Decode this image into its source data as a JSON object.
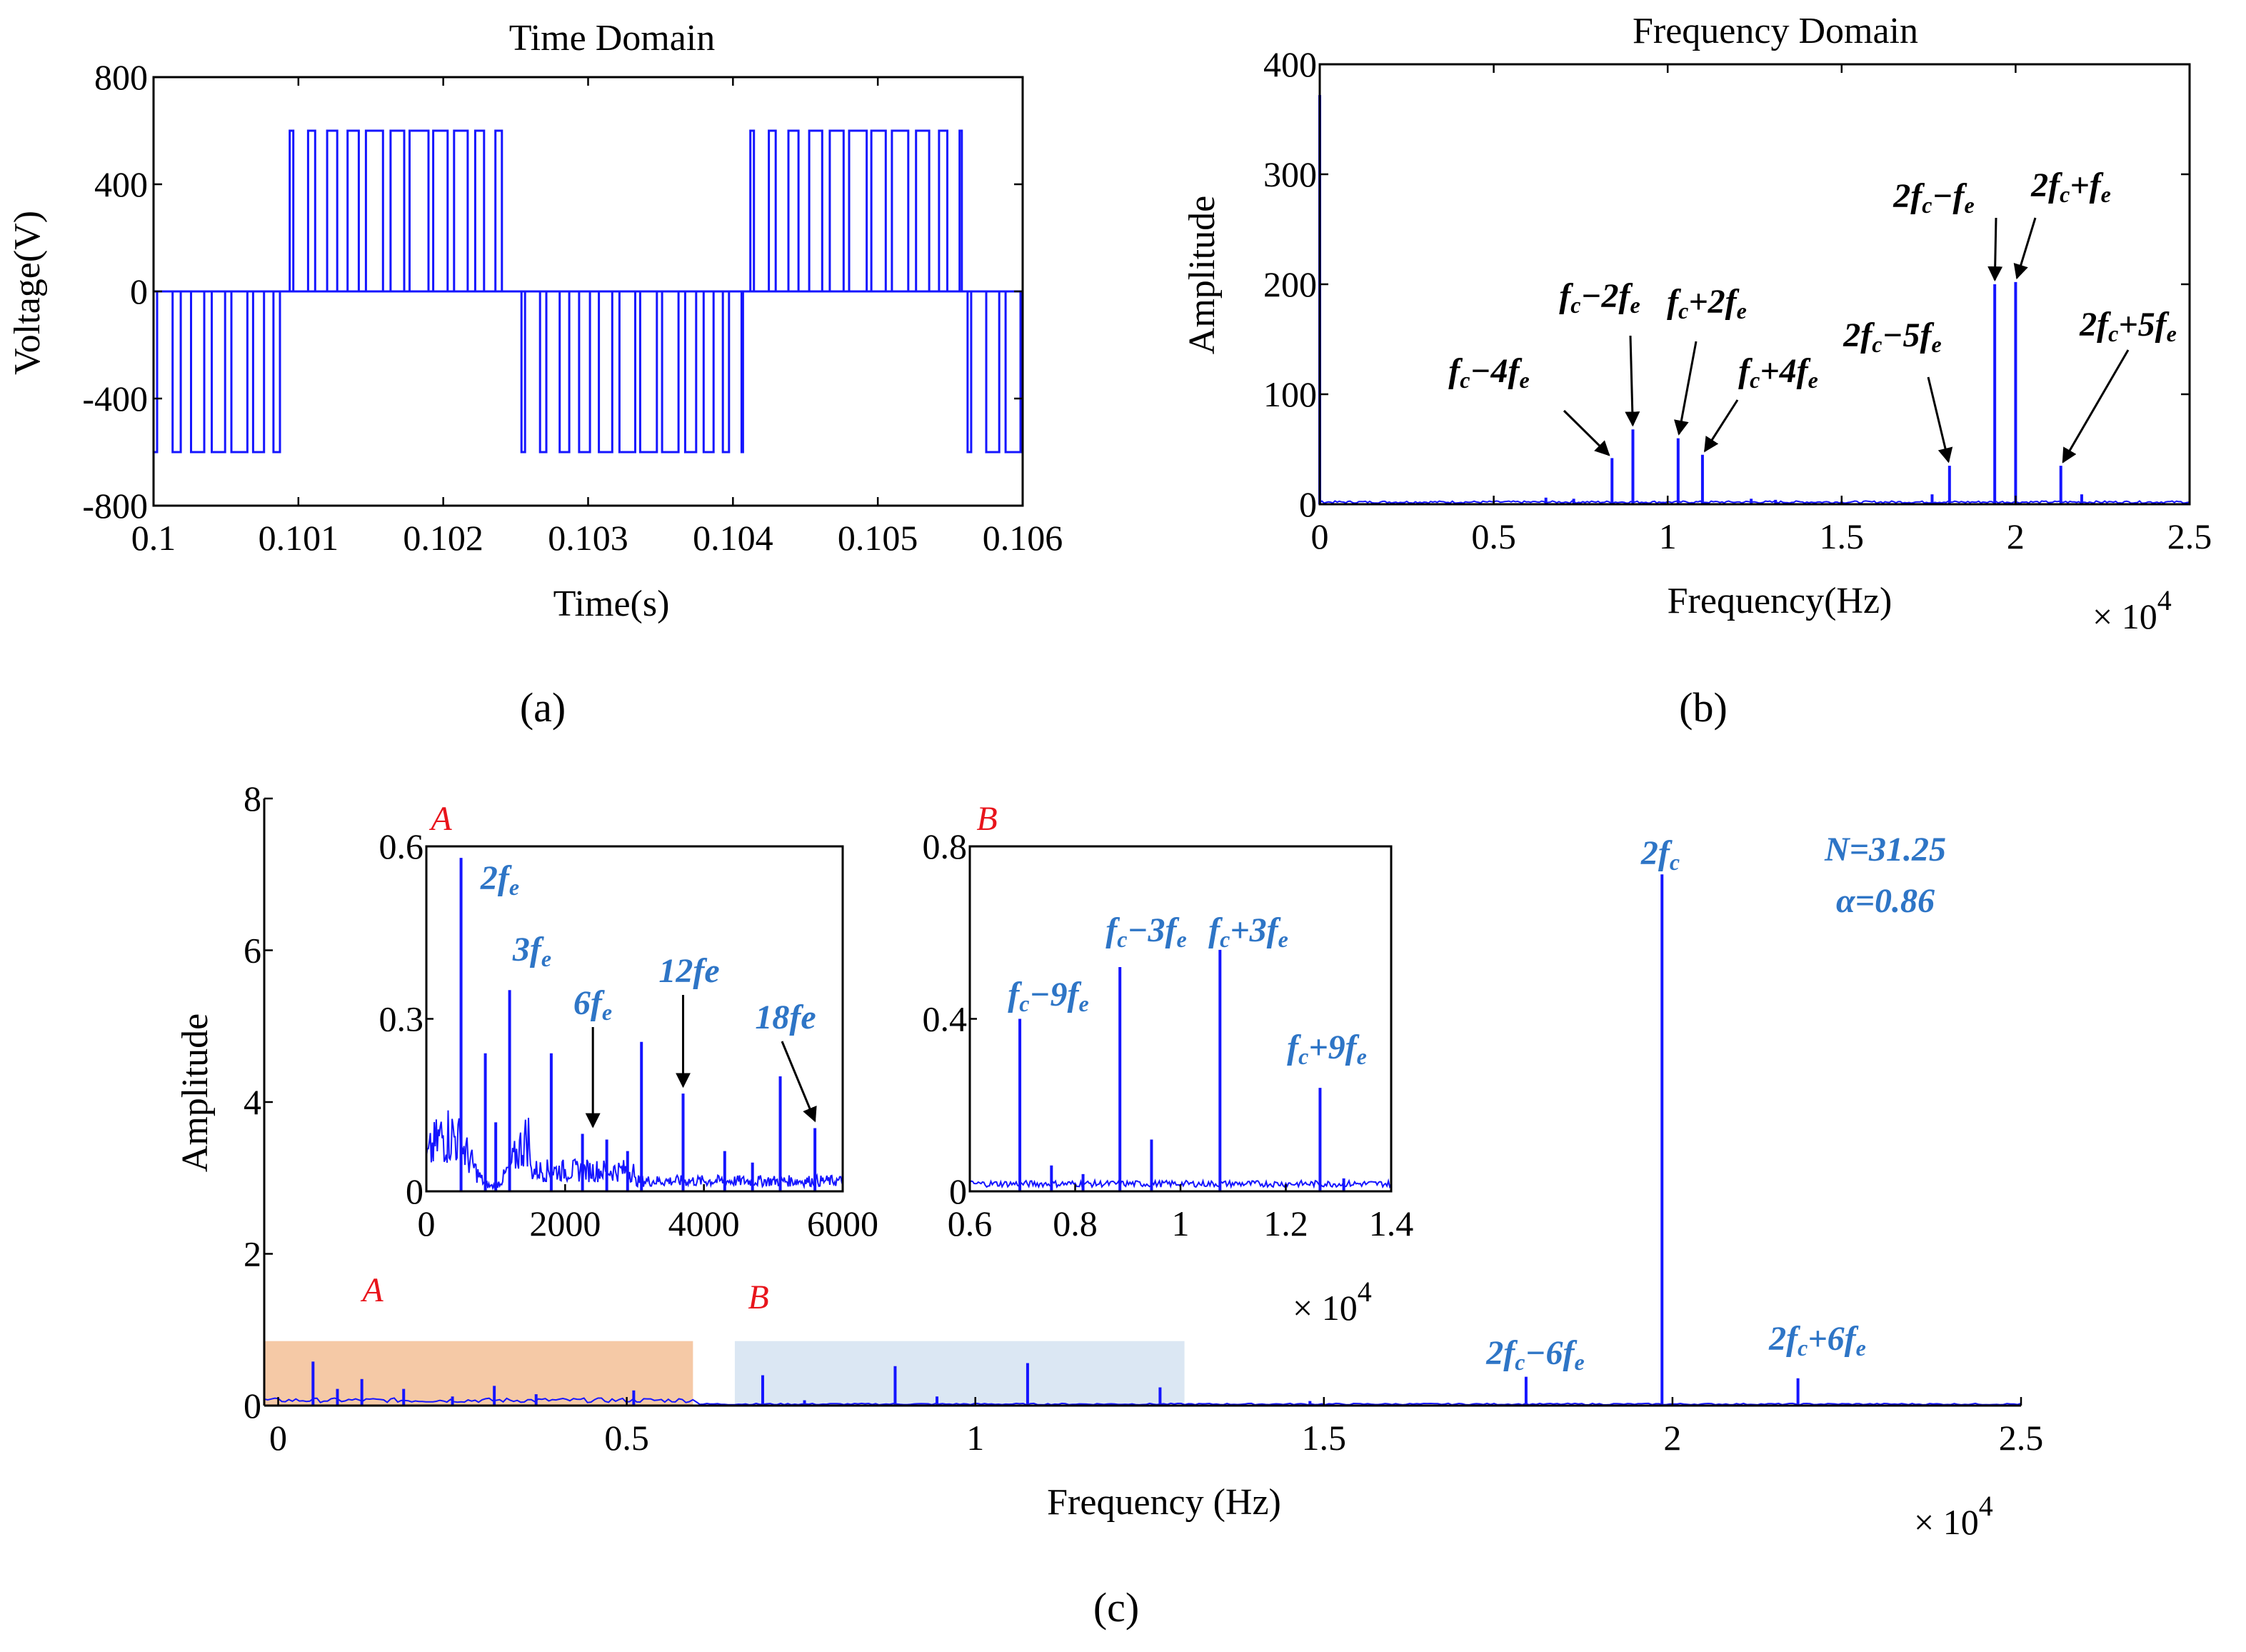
{
  "colors": {
    "signal": "#1515ff",
    "annotation_black": "#000000",
    "annotation_blue": "#2e75c6",
    "region_a_fill": "#f5c9a6",
    "region_b_fill": "#dbe7f3",
    "region_label": "#e8141b"
  },
  "captions": {
    "a": "(a)",
    "b": "(b)",
    "c": "(c)"
  },
  "chart_data": [
    {
      "id": "a",
      "type": "line",
      "title": "Time Domain",
      "xlabel": "Time(s)",
      "ylabel": "Voltage(V)",
      "xlim": [
        0.1,
        0.106
      ],
      "ylim": [
        -800,
        800
      ],
      "xticks": [
        0.1,
        0.101,
        0.102,
        0.103,
        0.104,
        0.105,
        0.106
      ],
      "xtick_labels": [
        "0.1",
        "0.101",
        "0.102",
        "0.103",
        "0.104",
        "0.105",
        "0.106"
      ],
      "yticks": [
        -800,
        -400,
        0,
        400,
        800
      ],
      "ytick_labels": [
        "-800",
        "-400",
        "0",
        "400",
        "800"
      ],
      "levels": {
        "high": 600,
        "low": -600
      },
      "segments": [
        {
          "start": 0.1,
          "end": 0.10089,
          "level": -600
        },
        {
          "start": 0.10094,
          "end": 0.10248,
          "level": 600
        },
        {
          "start": 0.10254,
          "end": 0.10406,
          "level": -600
        },
        {
          "start": 0.10412,
          "end": 0.10558,
          "level": 600
        },
        {
          "start": 0.10562,
          "end": 0.106,
          "level": -600
        }
      ]
    },
    {
      "id": "b",
      "type": "bar",
      "title": "Frequency Domain",
      "xlabel": "Frequency(Hz)",
      "ylabel": "Amplitude",
      "xlim": [
        0,
        25000
      ],
      "ylim": [
        0,
        400
      ],
      "xticks": [
        0,
        5000,
        10000,
        15000,
        20000,
        25000
      ],
      "xtick_labels": [
        "0",
        "0.5",
        "1",
        "1.5",
        "2",
        "2.5"
      ],
      "yticks": [
        0,
        100,
        200,
        300,
        400
      ],
      "ytick_labels": [
        "0",
        "100",
        "200",
        "300",
        "400"
      ],
      "x_multiplier": "× 10",
      "x_multiplier_exp": "4",
      "peaks": [
        {
          "x": 0,
          "y": 372
        },
        {
          "x": 8400,
          "y": 42
        },
        {
          "x": 9000,
          "y": 68
        },
        {
          "x": 10300,
          "y": 60
        },
        {
          "x": 11000,
          "y": 45
        },
        {
          "x": 18100,
          "y": 35
        },
        {
          "x": 19400,
          "y": 200
        },
        {
          "x": 20000,
          "y": 202
        },
        {
          "x": 21300,
          "y": 35
        },
        {
          "x": 6500,
          "y": 6
        },
        {
          "x": 7300,
          "y": 5
        },
        {
          "x": 12400,
          "y": 5
        },
        {
          "x": 13100,
          "y": 4
        },
        {
          "x": 17600,
          "y": 9
        },
        {
          "x": 21900,
          "y": 9
        }
      ],
      "annotations": [
        {
          "base": "f",
          "sub": "c",
          "rest": "−4",
          "f2": "f",
          "sub2": "e",
          "target_x": 8400,
          "target_y": 42
        },
        {
          "base": "f",
          "sub": "c",
          "rest": "−2",
          "f2": "f",
          "sub2": "e",
          "target_x": 9000,
          "target_y": 68
        },
        {
          "base": "f",
          "sub": "c",
          "rest": "+2",
          "f2": "f",
          "sub2": "e",
          "target_x": 10300,
          "target_y": 60
        },
        {
          "base": "f",
          "sub": "c",
          "rest": "+4",
          "f2": "f",
          "sub2": "e",
          "target_x": 11000,
          "target_y": 45
        },
        {
          "base": "2f",
          "sub": "c",
          "rest": "−5",
          "f2": "f",
          "sub2": "e",
          "target_x": 18100,
          "target_y": 35
        },
        {
          "base": "2f",
          "sub": "c",
          "rest": "−",
          "f2": "f",
          "sub2": "e",
          "target_x": 19400,
          "target_y": 200
        },
        {
          "base": "2f",
          "sub": "c",
          "rest": "+",
          "f2": "f",
          "sub2": "e",
          "target_x": 20000,
          "target_y": 202
        },
        {
          "base": "2f",
          "sub": "c",
          "rest": "+5",
          "f2": "f",
          "sub2": "e",
          "target_x": 21300,
          "target_y": 35
        }
      ]
    },
    {
      "id": "c",
      "type": "bar",
      "xlabel": "Frequency (Hz)",
      "ylabel": "Amplitude",
      "xlim": [
        -200,
        25000
      ],
      "ylim": [
        0,
        8
      ],
      "xticks": [
        0,
        5000,
        10000,
        15000,
        20000,
        25000
      ],
      "xtick_labels": [
        "0",
        "0.5",
        "1",
        "1.5",
        "2",
        "2.5"
      ],
      "yticks": [
        0,
        2,
        4,
        6,
        8
      ],
      "ytick_labels": [
        "0",
        "2",
        "4",
        "6",
        "8"
      ],
      "x_multiplier": "× 10",
      "x_multiplier_exp": "4",
      "params": [
        "N=31.25",
        "α=0.86"
      ],
      "regions": [
        {
          "label": "A",
          "x0": -200,
          "x1": 5950,
          "y1": 0.85,
          "fill": "region_a_fill"
        },
        {
          "label": "B",
          "x0": 6550,
          "x1": 13000,
          "y1": 0.85,
          "fill": "region_b_fill"
        }
      ],
      "peaks": [
        {
          "x": 500,
          "y": 0.58
        },
        {
          "x": 1200,
          "y": 0.35
        },
        {
          "x": 1800,
          "y": 0.22
        },
        {
          "x": 3100,
          "y": 0.26
        },
        {
          "x": 3700,
          "y": 0.15
        },
        {
          "x": 5100,
          "y": 0.2
        },
        {
          "x": 850,
          "y": 0.22
        },
        {
          "x": 2500,
          "y": 0.12
        },
        {
          "x": 6950,
          "y": 0.4
        },
        {
          "x": 8850,
          "y": 0.52
        },
        {
          "x": 10750,
          "y": 0.56
        },
        {
          "x": 12650,
          "y": 0.24
        },
        {
          "x": 9450,
          "y": 0.12
        },
        {
          "x": 7550,
          "y": 0.07
        },
        {
          "x": 14800,
          "y": 0.06
        },
        {
          "x": 17900,
          "y": 0.38
        },
        {
          "x": 19850,
          "y": 7.0
        },
        {
          "x": 21800,
          "y": 0.36
        }
      ],
      "annotations": [
        {
          "base": "2f",
          "sub": "c",
          "rest": "",
          "f2": "",
          "sub2": "",
          "x": 19850
        },
        {
          "base": "2f",
          "sub": "c",
          "rest": "−6",
          "f2": "f",
          "sub2": "e",
          "x": 17900
        },
        {
          "base": "2f",
          "sub": "c",
          "rest": "+6",
          "f2": "f",
          "sub2": "e",
          "x": 21800
        }
      ],
      "insets": [
        {
          "id": "A",
          "label": "A",
          "xlim": [
            0,
            6000
          ],
          "ylim": [
            0,
            0.6
          ],
          "xticks": [
            0,
            2000,
            4000,
            6000
          ],
          "xtick_labels": [
            "0",
            "2000",
            "4000",
            "6000"
          ],
          "yticks": [
            0,
            0.3,
            0.6
          ],
          "ytick_labels": [
            "0",
            "0.3",
            "0.6"
          ],
          "peaks": [
            {
              "x": 500,
              "y": 0.58
            },
            {
              "x": 1200,
              "y": 0.35
            },
            {
              "x": 1800,
              "y": 0.24
            },
            {
              "x": 2250,
              "y": 0.1
            },
            {
              "x": 3100,
              "y": 0.26
            },
            {
              "x": 3700,
              "y": 0.17
            },
            {
              "x": 5100,
              "y": 0.2
            },
            {
              "x": 5600,
              "y": 0.11
            },
            {
              "x": 850,
              "y": 0.24
            },
            {
              "x": 1000,
              "y": 0.12
            },
            {
              "x": 2600,
              "y": 0.09
            },
            {
              "x": 2900,
              "y": 0.07
            },
            {
              "x": 4300,
              "y": 0.07
            },
            {
              "x": 4700,
              "y": 0.05
            }
          ],
          "annotations": [
            {
              "text": "2f",
              "sub": "e",
              "x": 500,
              "y": 0.58,
              "arrow": false
            },
            {
              "text": "3f",
              "sub": "e",
              "x": 1200,
              "y": 0.35,
              "arrow": false
            },
            {
              "text": "6f",
              "sub": "e",
              "x": 2400,
              "y": 0.1,
              "arrow": true
            },
            {
              "text": "12fe",
              "sub": "",
              "x": 3700,
              "y": 0.17,
              "arrow": true
            },
            {
              "text": "18fe",
              "sub": "",
              "x": 5600,
              "y": 0.11,
              "arrow": true
            }
          ]
        },
        {
          "id": "B",
          "label": "B",
          "xlim": [
            6000,
            14000
          ],
          "ylim": [
            0,
            0.8
          ],
          "xticks": [
            6000,
            8000,
            10000,
            12000,
            14000
          ],
          "xtick_labels": [
            "0.6",
            "0.8",
            "1",
            "1.2",
            "1.4"
          ],
          "yticks": [
            0,
            0.4,
            0.8
          ],
          "ytick_labels": [
            "0",
            "0.4",
            "0.8"
          ],
          "x_multiplier": "× 10",
          "x_multiplier_exp": "4",
          "peaks": [
            {
              "x": 6950,
              "y": 0.4
            },
            {
              "x": 8850,
              "y": 0.52
            },
            {
              "x": 10750,
              "y": 0.56
            },
            {
              "x": 12650,
              "y": 0.24
            },
            {
              "x": 9450,
              "y": 0.12
            },
            {
              "x": 7550,
              "y": 0.06
            },
            {
              "x": 8150,
              "y": 0.04
            },
            {
              "x": 13100,
              "y": 0.03
            }
          ],
          "annotations": [
            {
              "base": "f",
              "sub": "c",
              "rest": "−9",
              "f2": "f",
              "sub2": "e",
              "x": 6950
            },
            {
              "base": "f",
              "sub": "c",
              "rest": "−3",
              "f2": "f",
              "sub2": "e",
              "x": 8850
            },
            {
              "base": "f",
              "sub": "c",
              "rest": "+3",
              "f2": "f",
              "sub2": "e",
              "x": 10750
            },
            {
              "base": "f",
              "sub": "c",
              "rest": "+9",
              "f2": "f",
              "sub2": "e",
              "x": 12650
            }
          ]
        }
      ]
    }
  ]
}
